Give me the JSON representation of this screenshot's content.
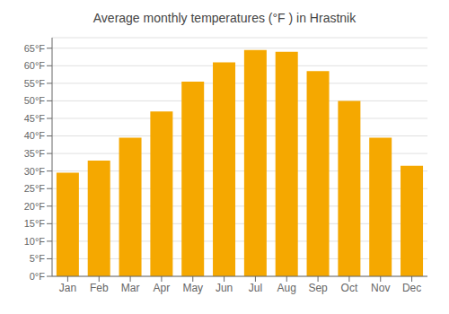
{
  "chart_data": {
    "type": "bar",
    "title": "Average monthly temperatures (°F ) in Hrastnik",
    "categories": [
      "Jan",
      "Feb",
      "Mar",
      "Apr",
      "May",
      "Jun",
      "Jul",
      "Aug",
      "Sep",
      "Oct",
      "Nov",
      "Dec"
    ],
    "values": [
      29.5,
      33.0,
      39.5,
      47.0,
      55.5,
      61.0,
      64.5,
      64.0,
      58.5,
      50.0,
      39.5,
      31.5
    ],
    "color": "#F5A800",
    "ylim": [
      0,
      68
    ],
    "yticks": [
      {
        "value": 0,
        "label": "0°F"
      },
      {
        "value": 5,
        "label": "5°F"
      },
      {
        "value": 10,
        "label": "10°F"
      },
      {
        "value": 15,
        "label": "15°F"
      },
      {
        "value": 20,
        "label": "20°F"
      },
      {
        "value": 25,
        "label": "25°F"
      },
      {
        "value": 30,
        "label": "30°F"
      },
      {
        "value": 35,
        "label": "35°F"
      },
      {
        "value": 40,
        "label": "40°F"
      },
      {
        "value": 45,
        "label": "45°F"
      },
      {
        "value": 50,
        "label": "50°F"
      },
      {
        "value": 55,
        "label": "55°F"
      },
      {
        "value": 60,
        "label": "60°F"
      },
      {
        "value": 65,
        "label": "65°F"
      }
    ],
    "grid": true
  }
}
